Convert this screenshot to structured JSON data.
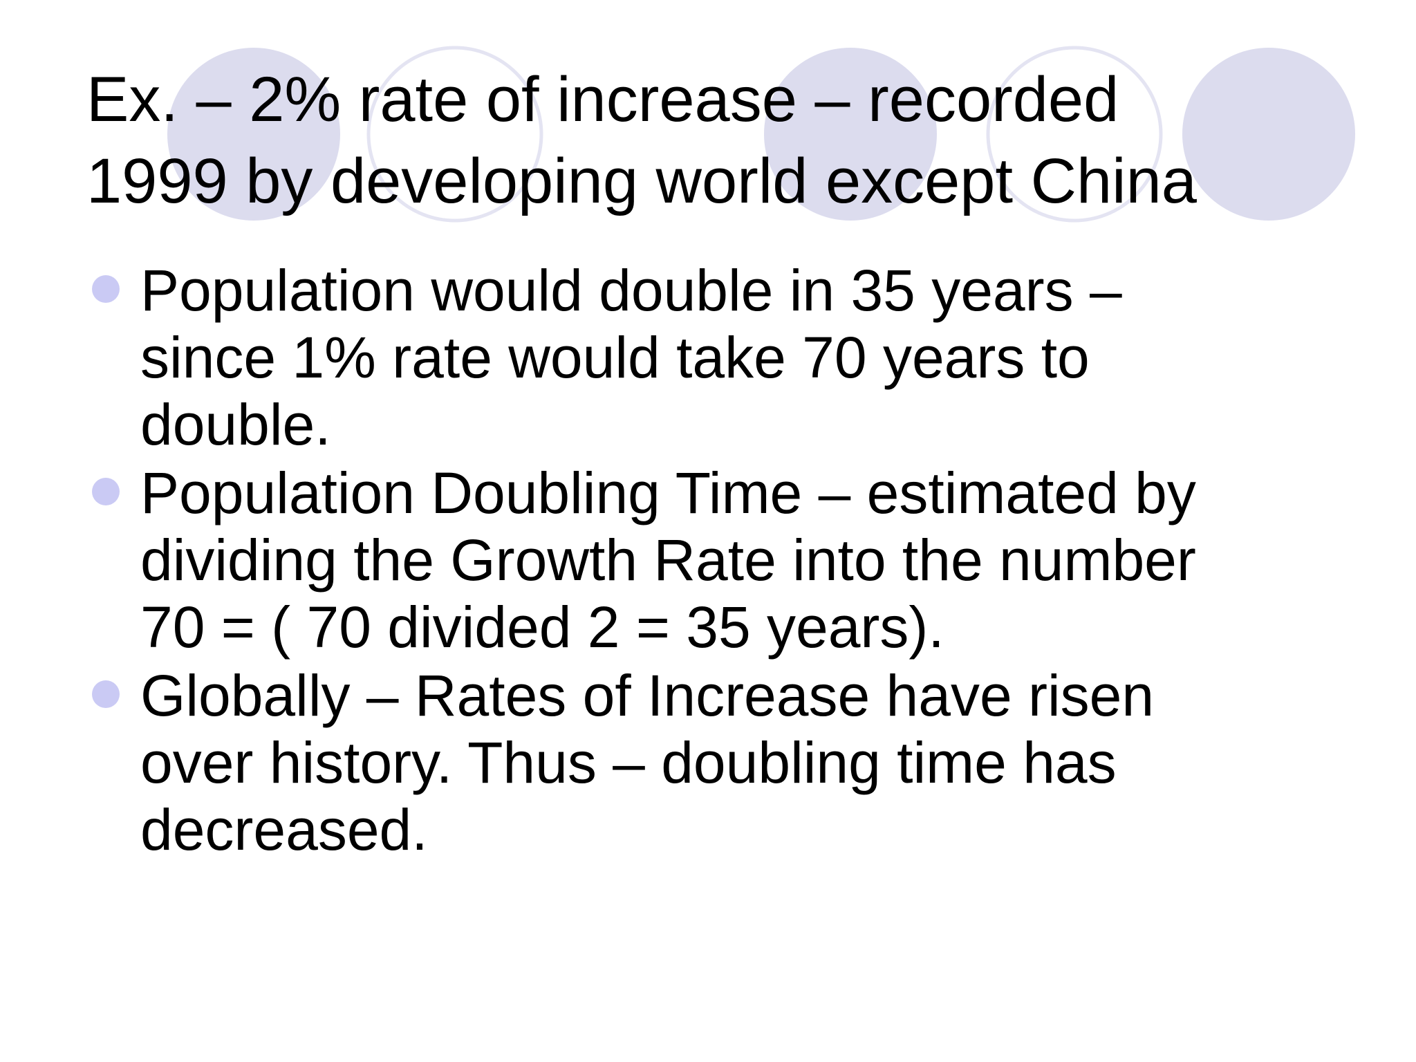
{
  "slide": {
    "title_lines": [
      "Ex. – 2% rate of increase – recorded",
      "1999 by developing world except China"
    ],
    "bullets": [
      {
        "lines": [
          "Population would double in 35 years –",
          "since 1% rate would take 70 years to",
          "double."
        ]
      },
      {
        "lines": [
          "Population Doubling Time – estimated by",
          "dividing the Growth Rate into the number",
          "70 = ( 70 divided 2 = 35 years)."
        ]
      },
      {
        "lines": [
          "Globally – Rates of Increase have risen",
          "over history.  Thus – doubling time has",
          "decreased."
        ]
      }
    ]
  },
  "colors": {
    "background": "#ffffff",
    "text": "#000000",
    "accent_circle_fill": "#dcdcee",
    "accent_circle_outline": "#e4e4f2",
    "bullet": "#cacaf4"
  }
}
